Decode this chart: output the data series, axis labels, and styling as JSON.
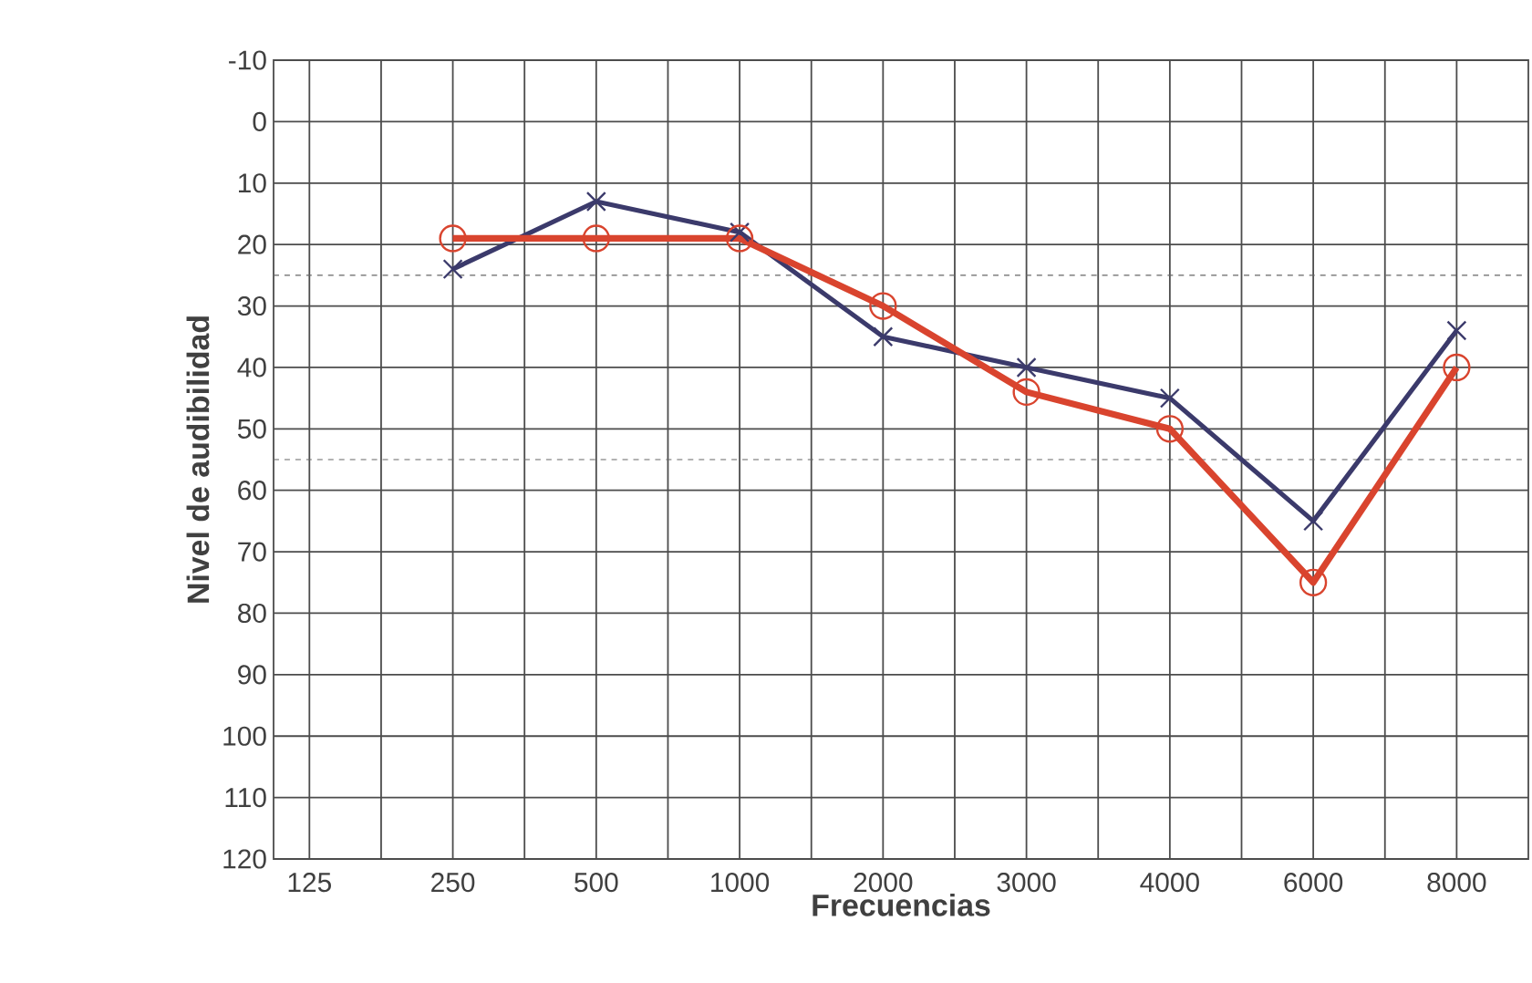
{
  "chart_data": {
    "type": "line",
    "xlabel": "Frecuencias",
    "ylabel": "Nivel de audibilidad",
    "categories": [
      "125",
      "250",
      "500",
      "1000",
      "2000",
      "3000",
      "4000",
      "6000",
      "8000"
    ],
    "series": [
      {
        "color": "#3b3a6b",
        "marker": "cross",
        "values": [
          null,
          24,
          13,
          18,
          35,
          40,
          45,
          65,
          34
        ]
      },
      {
        "color": "#d9442e",
        "marker": "circle",
        "values": [
          null,
          19,
          19,
          19,
          30,
          44,
          50,
          75,
          40
        ]
      }
    ],
    "ylim": [
      120,
      -10
    ],
    "yticks": [
      -10,
      0,
      10,
      20,
      30,
      40,
      50,
      60,
      70,
      80,
      90,
      100,
      110,
      120
    ],
    "grid": true,
    "line_style": "solid",
    "ref_lines": [
      {
        "axis": "y",
        "value": 25,
        "line_style": "dashed"
      },
      {
        "axis": "y",
        "value": 55,
        "line_style": "dashed"
      }
    ]
  }
}
